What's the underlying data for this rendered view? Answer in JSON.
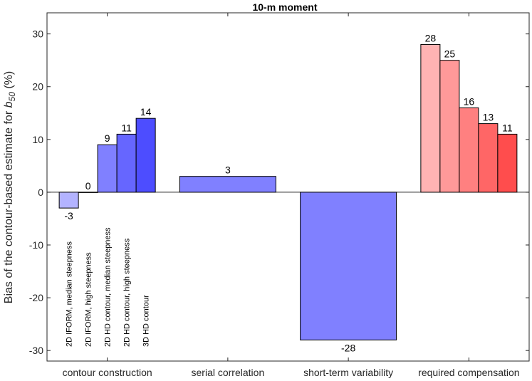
{
  "chart_data": {
    "type": "bar",
    "title": "10-m moment",
    "ylabel": {
      "prefix": "Bias of the contour-based estimate for ",
      "symbol": "b",
      "subscript": "50",
      "suffix": " (%)"
    },
    "ylim": [
      -32,
      34
    ],
    "yticks": [
      -30,
      -20,
      -10,
      0,
      10,
      20,
      30
    ],
    "grid": false,
    "groups": [
      {
        "label": "contour construction",
        "bars": [
          {
            "name": "2D IFORM, median steepness",
            "value": -3,
            "color": "#b3b3ff"
          },
          {
            "name": "2D IFORM, high steepness",
            "value": 0,
            "color": "#9999ff"
          },
          {
            "name": "2D HD contour, median steepness",
            "value": 9,
            "color": "#8080ff"
          },
          {
            "name": "2D HD contour, high steepness",
            "value": 11,
            "color": "#6666ff"
          },
          {
            "name": "3D HD contour",
            "value": 14,
            "color": "#4d4dff"
          }
        ]
      },
      {
        "label": "serial correlation",
        "bars": [
          {
            "name": "",
            "value": 3,
            "color": "#8080ff"
          }
        ]
      },
      {
        "label": "short-term variability",
        "bars": [
          {
            "name": "",
            "value": -28,
            "color": "#8080ff"
          }
        ]
      },
      {
        "label": "required compensation",
        "bars": [
          {
            "name": "",
            "value": 28,
            "color": "#ffb3b3"
          },
          {
            "name": "",
            "value": 25,
            "color": "#ff9999"
          },
          {
            "name": "",
            "value": 16,
            "color": "#ff8080"
          },
          {
            "name": "",
            "value": 13,
            "color": "#ff6666"
          },
          {
            "name": "",
            "value": 11,
            "color": "#ff4d4d"
          }
        ]
      }
    ]
  }
}
